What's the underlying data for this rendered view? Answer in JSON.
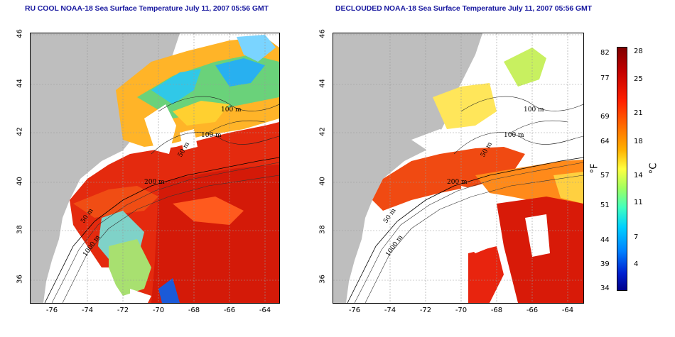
{
  "panels": {
    "left_title": "RU COOL NOAA-18 Sea Surface Temperature July 11, 2007 05:56 GMT",
    "right_title": "DECLOUDED NOAA-18 Sea Surface Temperature July 11, 2007 05:56 GMT"
  },
  "axes": {
    "x_ticks": [
      "-76",
      "-74",
      "-72",
      "-70",
      "-68",
      "-66",
      "-64"
    ],
    "y_ticks": [
      "46",
      "44",
      "42",
      "40",
      "38",
      "36"
    ]
  },
  "contours": {
    "labels": [
      "100 m",
      "100 m",
      "50 m",
      "200 m",
      "50 m",
      "1000 m"
    ]
  },
  "colorbar": {
    "fahrenheit_ticks": [
      "82",
      "77",
      "69",
      "64",
      "57",
      "51",
      "44",
      "39",
      "34"
    ],
    "celsius_ticks": [
      "28",
      "25",
      "21",
      "18",
      "14",
      "11",
      "7",
      "4"
    ],
    "f_unit": "°F",
    "c_unit": "°C"
  },
  "colors": {
    "land": "#bebebe",
    "cloud_mask": "#ffffff",
    "warm": "#e81e0a",
    "cool": "#1e90ff",
    "title": "#1a1aa0"
  }
}
